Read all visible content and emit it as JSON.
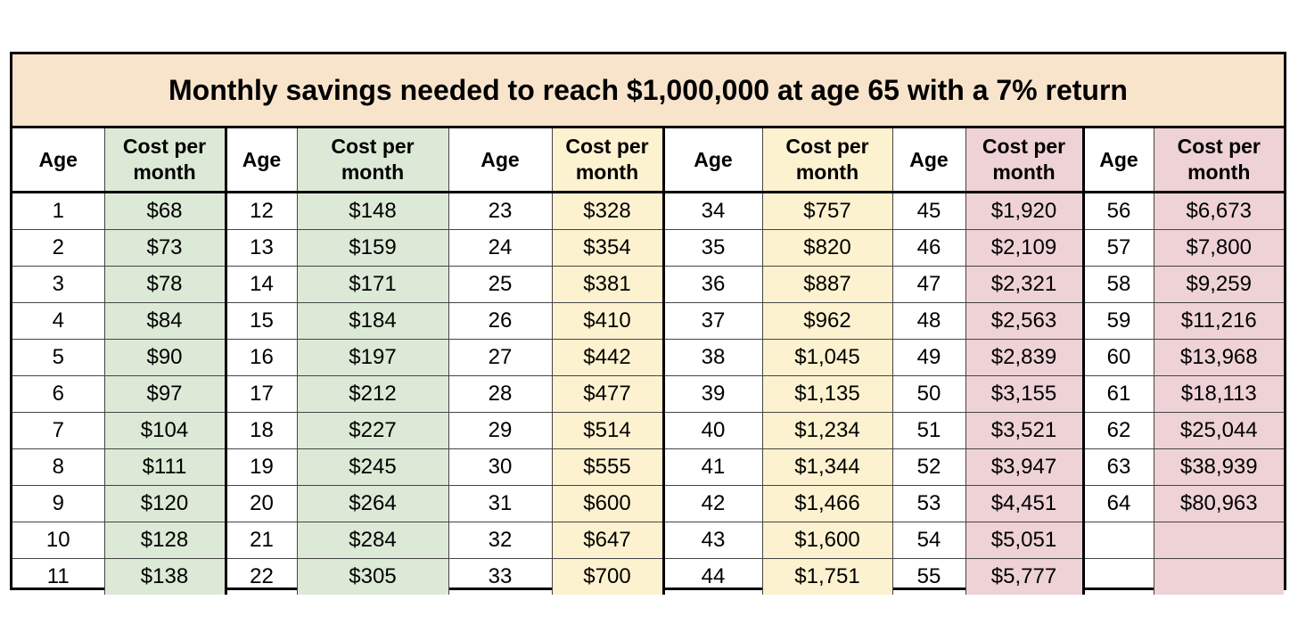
{
  "title": "Monthly savings needed to reach $1,000,000 at age 65 with a 7% return",
  "headers": {
    "age": "Age",
    "cost": "Cost per month"
  },
  "columns": [
    {
      "color": "green",
      "rows": [
        [
          "1",
          "$68"
        ],
        [
          "2",
          "$73"
        ],
        [
          "3",
          "$78"
        ],
        [
          "4",
          "$84"
        ],
        [
          "5",
          "$90"
        ],
        [
          "6",
          "$97"
        ],
        [
          "7",
          "$104"
        ],
        [
          "8",
          "$111"
        ],
        [
          "9",
          "$120"
        ],
        [
          "10",
          "$128"
        ],
        [
          "11",
          "$138"
        ]
      ]
    },
    {
      "color": "green",
      "rows": [
        [
          "12",
          "$148"
        ],
        [
          "13",
          "$159"
        ],
        [
          "14",
          "$171"
        ],
        [
          "15",
          "$184"
        ],
        [
          "16",
          "$197"
        ],
        [
          "17",
          "$212"
        ],
        [
          "18",
          "$227"
        ],
        [
          "19",
          "$245"
        ],
        [
          "20",
          "$264"
        ],
        [
          "21",
          "$284"
        ],
        [
          "22",
          "$305"
        ]
      ]
    },
    {
      "color": "yellow",
      "rows": [
        [
          "23",
          "$328"
        ],
        [
          "24",
          "$354"
        ],
        [
          "25",
          "$381"
        ],
        [
          "26",
          "$410"
        ],
        [
          "27",
          "$442"
        ],
        [
          "28",
          "$477"
        ],
        [
          "29",
          "$514"
        ],
        [
          "30",
          "$555"
        ],
        [
          "31",
          "$600"
        ],
        [
          "32",
          "$647"
        ],
        [
          "33",
          "$700"
        ]
      ]
    },
    {
      "color": "yellow",
      "rows": [
        [
          "34",
          "$757"
        ],
        [
          "35",
          "$820"
        ],
        [
          "36",
          "$887"
        ],
        [
          "37",
          "$962"
        ],
        [
          "38",
          "$1,045"
        ],
        [
          "39",
          "$1,135"
        ],
        [
          "40",
          "$1,234"
        ],
        [
          "41",
          "$1,344"
        ],
        [
          "42",
          "$1,466"
        ],
        [
          "43",
          "$1,600"
        ],
        [
          "44",
          "$1,751"
        ]
      ]
    },
    {
      "color": "pink",
      "rows": [
        [
          "45",
          "$1,920"
        ],
        [
          "46",
          "$2,109"
        ],
        [
          "47",
          "$2,321"
        ],
        [
          "48",
          "$2,563"
        ],
        [
          "49",
          "$2,839"
        ],
        [
          "50",
          "$3,155"
        ],
        [
          "51",
          "$3,521"
        ],
        [
          "52",
          "$3,947"
        ],
        [
          "53",
          "$4,451"
        ],
        [
          "54",
          "$5,051"
        ],
        [
          "55",
          "$5,777"
        ]
      ]
    },
    {
      "color": "pink",
      "rows": [
        [
          "56",
          "$6,673"
        ],
        [
          "57",
          "$7,800"
        ],
        [
          "58",
          "$9,259"
        ],
        [
          "59",
          "$11,216"
        ],
        [
          "60",
          "$13,968"
        ],
        [
          "61",
          "$18,113"
        ],
        [
          "62",
          "$25,044"
        ],
        [
          "63",
          "$38,939"
        ],
        [
          "64",
          "$80,963"
        ],
        [
          "",
          ""
        ],
        [
          "",
          ""
        ]
      ]
    }
  ],
  "colors": {
    "title_bg": "#f8e4cb",
    "green": "#dce9d6",
    "yellow": "#fdf2cf",
    "pink": "#eed2d5"
  }
}
